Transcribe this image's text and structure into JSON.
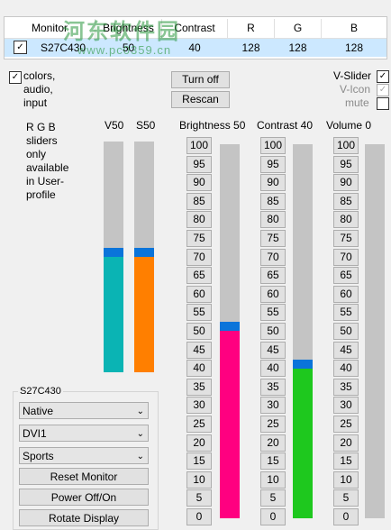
{
  "monitor_table": {
    "columns": [
      "Monitor",
      "Brightness",
      "Contrast",
      "R",
      "G",
      "B"
    ],
    "row": {
      "monitor": "S27C430",
      "brightness": "50",
      "contrast": "40",
      "r": "128",
      "g": "128",
      "b": "128"
    }
  },
  "watermark": {
    "title": "河东软件园",
    "url": "www.pc0359.cn"
  },
  "options": {
    "colors_label_lines": [
      "colors,",
      "audio,",
      "input"
    ],
    "v_slider": "V-Slider",
    "v_icon": "V-Icon",
    "mute": "mute"
  },
  "buttons": {
    "turn_off": "Turn off",
    "rescan": "Rescan"
  },
  "rgb_note_lines": [
    "R G B",
    "sliders",
    "only",
    "available",
    "in User-",
    "profile"
  ],
  "sliders": {
    "v": {
      "label": "V50",
      "value": 50,
      "color": "#0ab4b4"
    },
    "s": {
      "label": "S50",
      "value": 50,
      "color": "#ff7f00"
    },
    "brightness": {
      "label": "Brightness 50",
      "value": 50,
      "color": "#ff0080"
    },
    "contrast": {
      "label": "Contrast 40",
      "value": 40,
      "color": "#1ec81e"
    },
    "volume": {
      "label": "Volume 0",
      "value": 0,
      "color": "#c4c4c4"
    }
  },
  "level_buttons": [
    "100",
    "95",
    "90",
    "85",
    "80",
    "75",
    "70",
    "65",
    "60",
    "55",
    "50",
    "45",
    "40",
    "35",
    "30",
    "25",
    "20",
    "15",
    "10",
    "5",
    "0"
  ],
  "monitor_group": {
    "title": "S27C430",
    "dropdowns": [
      "Native",
      "DVI1",
      "Sports"
    ],
    "buttons": [
      "Reset Monitor",
      "Power Off/On",
      "Rotate Display"
    ]
  }
}
